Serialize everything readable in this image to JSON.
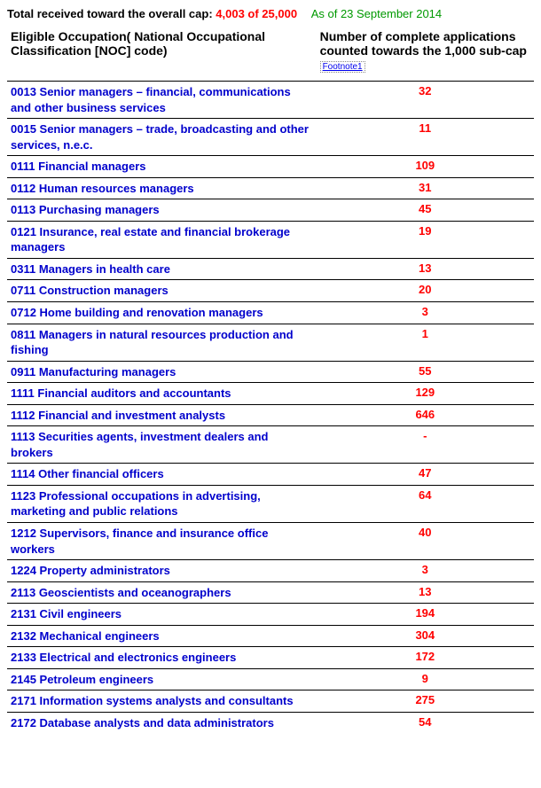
{
  "header": {
    "prefix": "Total received toward the overall cap: ",
    "count_text": "4,003 of 25,000",
    "asof": "As of 23 September  2014"
  },
  "table": {
    "col1_header": "Eligible Occupation( National Occupational Classification [NOC] code)",
    "col2_header_prefix": "Number of complete applications counted towards the 1,000 sub-cap ",
    "footnote_label": "Footnote1",
    "rows": [
      {
        "occ": "0013 Senior managers – financial, communications and other business services",
        "count": "32"
      },
      {
        "occ": "0015 Senior managers – trade, broadcasting and other services, n.e.c.",
        "count": "11"
      },
      {
        "occ": "0111 Financial managers",
        "count": "109"
      },
      {
        "occ": "0112 Human resources managers",
        "count": "31"
      },
      {
        "occ": "0113 Purchasing managers",
        "count": "45"
      },
      {
        "occ": "0121 Insurance, real estate and financial brokerage managers",
        "count": "19"
      },
      {
        "occ": "0311 Managers in health care",
        "count": "13"
      },
      {
        "occ": "0711 Construction managers",
        "count": "20"
      },
      {
        "occ": "0712 Home building and renovation managers",
        "count": "3"
      },
      {
        "occ": "0811 Managers in natural resources production and fishing",
        "count": "1"
      },
      {
        "occ": "0911 Manufacturing managers",
        "count": "55"
      },
      {
        "occ": "1111 Financial auditors and accountants",
        "count": "129"
      },
      {
        "occ": "1112 Financial and investment analysts",
        "count": "646"
      },
      {
        "occ": "1113 Securities agents, investment dealers and brokers",
        "count": "-"
      },
      {
        "occ": "1114 Other financial officers",
        "count": "47"
      },
      {
        "occ": "1123 Professional occupations in advertising, marketing and public relations",
        "count": "64"
      },
      {
        "occ": "1212 Supervisors, finance and insurance office workers",
        "count": "40"
      },
      {
        "occ": "1224 Property administrators",
        "count": "3"
      },
      {
        "occ": "2113 Geoscientists and oceanographers",
        "count": "13"
      },
      {
        "occ": "2131 Civil engineers",
        "count": "194"
      },
      {
        "occ": "2132 Mechanical engineers",
        "count": "304"
      },
      {
        "occ": "2133 Electrical and electronics engineers",
        "count": "172"
      },
      {
        "occ": "2145 Petroleum engineers",
        "count": "9"
      },
      {
        "occ": "2171 Information systems analysts and consultants",
        "count": "275"
      },
      {
        "occ": "2172 Database analysts and data administrators",
        "count": "54"
      }
    ]
  }
}
